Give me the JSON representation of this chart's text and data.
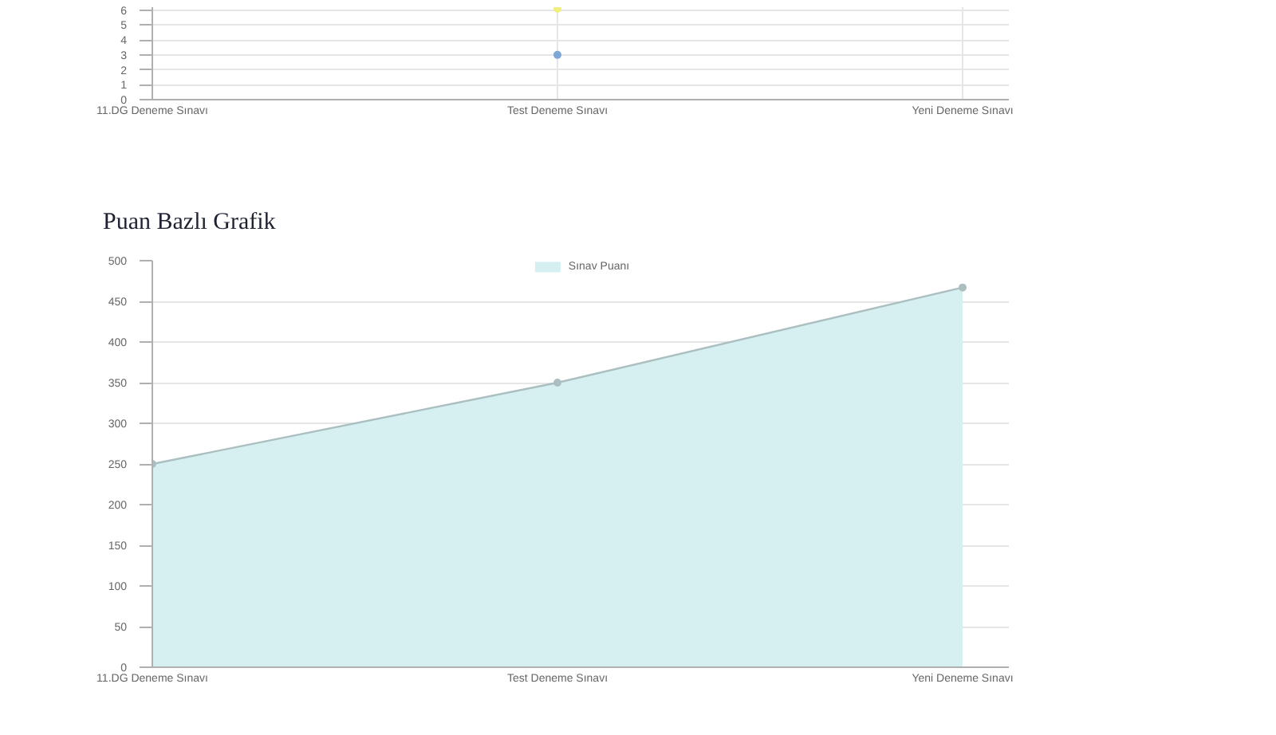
{
  "chart_data": [
    {
      "type": "line",
      "categories": [
        "11.DG Deneme Sınavı",
        "Test Deneme Sınavı",
        "Yeni Deneme Sınavı"
      ],
      "ylim": [
        0,
        6.2
      ],
      "yticks": [
        0,
        1,
        2,
        3,
        4,
        5,
        6
      ],
      "grid": true,
      "marker": "circle",
      "series": [
        {
          "color": "#7ea7d8",
          "values": [
            null,
            3,
            null
          ]
        },
        {
          "color": "#f2ee7e",
          "values": [
            null,
            6.1,
            null
          ]
        }
      ]
    },
    {
      "type": "area",
      "title": "Puan Bazlı Grafik",
      "categories": [
        "11.DG Deneme Sınavı",
        "Test Deneme Sınavı",
        "Yeni Deneme Sınavı"
      ],
      "series": [
        {
          "name": "Sınav Puanı",
          "color": "#d6eff0",
          "values": [
            250,
            350,
            467
          ]
        }
      ],
      "ylim": [
        0,
        500
      ],
      "yticks": [
        0,
        50,
        100,
        150,
        200,
        250,
        300,
        350,
        400,
        450,
        500
      ],
      "grid": "y",
      "legend": "top",
      "marker": "circle"
    }
  ]
}
